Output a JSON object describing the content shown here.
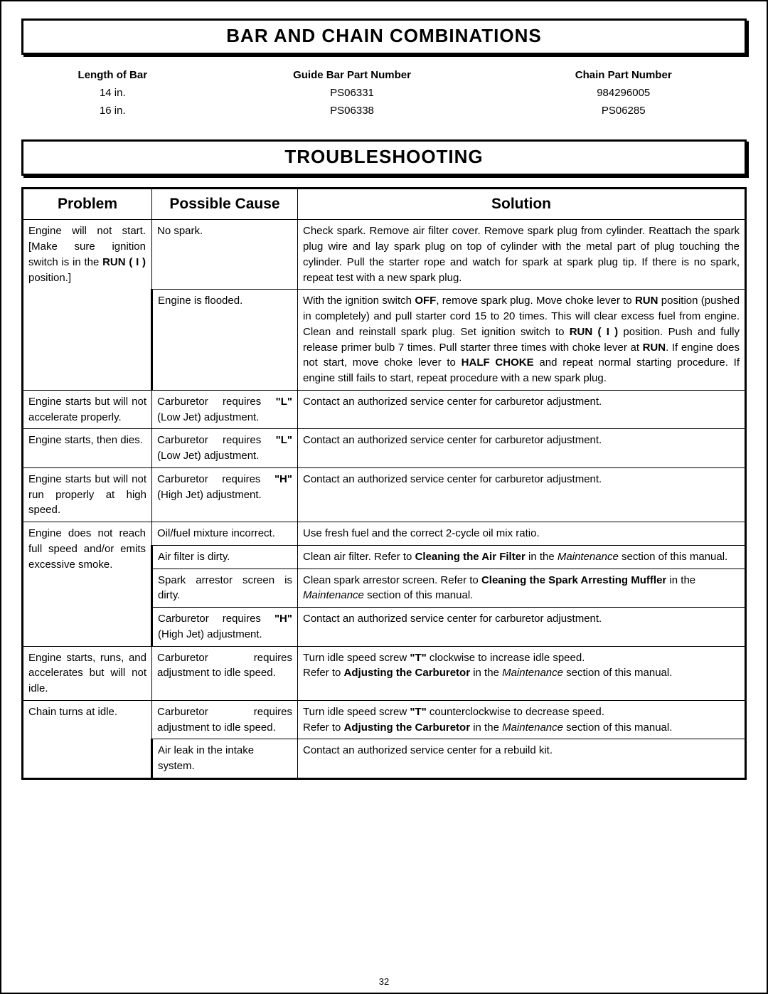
{
  "page_number": "32",
  "section1": {
    "title": "BAR AND CHAIN COMBINATIONS",
    "headers": [
      "Length of Bar",
      "Guide Bar Part Number",
      "Chain Part Number"
    ],
    "rows": [
      [
        "14 in.",
        "PS06331",
        "984296005"
      ],
      [
        "16 in.",
        "PS06338",
        "PS06285"
      ]
    ]
  },
  "section2": {
    "title": "TROUBLESHOOTING",
    "headers": [
      "Problem",
      "Possible Cause",
      "Solution"
    ],
    "rows": [
      {
        "problem_html": "Engine will not start. [Make sure ignition switch is in the <b>RUN ( I )</b> position.]",
        "cause_html": "No spark.",
        "solution_html": "Check spark. Remove air filter cover. Remove spark plug from cylinder. Reattach the spark plug wire and lay spark plug on top of cylinder with the metal part of plug touching the cylinder. Pull the starter rope and watch for spark at spark plug tip. If there is no spark, repeat test with a new spark plug."
      },
      {
        "problem_html": "",
        "cause_html": "Engine is flooded.",
        "solution_html": "With the ignition switch <b>OFF</b>, remove spark plug. Move choke lever to <b>RUN</b> position (pushed in completely) and pull starter cord 15 to 20 times. This will clear excess fuel from engine. Clean and reinstall spark plug. Set ignition switch to <b>RUN ( I )</b> position. Push and fully release primer bulb 7 times. Pull starter three times with choke lever at <b>RUN</b>. If engine does not start, move choke lever to <b>HALF CHOKE</b> and repeat normal starting procedure. If engine still fails to start, repeat procedure with a new spark plug."
      },
      {
        "problem_html": "Engine starts but will not accelerate prop­erly.",
        "cause_html": "Carburetor requires <b>\"L\"</b> (Low Jet) adjustment.",
        "solution_html": "Contact an authorized service center for carburetor adjustment."
      },
      {
        "problem_html": "Engine starts, then dies.",
        "cause_html": "Carburetor requires <b>\"L\"</b> (Low Jet) adjustment.",
        "solution_html": "Contact an authorized service center for carburetor adjustment."
      },
      {
        "problem_html": "Engine starts but will not run properly at high speed.",
        "cause_html": "Carburetor requires <b>\"H\"</b> (High Jet) adjustment.",
        "solution_html": "Contact an authorized service center for carburetor adjustment."
      },
      {
        "problem_html": "Engine does not reach full speed and/or emits excessive smoke.",
        "cause_html": "Oil/fuel mixture incorrect.",
        "solution_html": "Use fresh fuel and the correct 2-cycle oil mix ratio."
      },
      {
        "problem_html": "",
        "cause_html": "Air filter is dirty.",
        "solution_html": "Clean air filter. Refer to <b>Cleaning the Air Filter</b> in the <i>Maintenance</i> section of this manual."
      },
      {
        "problem_html": "",
        "cause_html": "Spark arrestor screen is dirty.",
        "solution_html": "Clean spark arrestor screen. Refer to <b>Cleaning the Spark Arresting Muffler</b> in the <i>Maintenance</i> section of this manual."
      },
      {
        "problem_html": "",
        "cause_html": "Carburetor requires <b>\"H\"</b> (High Jet) adjustment.",
        "solution_html": "Contact an authorized service center for carburetor adjustment."
      },
      {
        "problem_html": "Engine starts, runs, and accelerates but will not idle.",
        "cause_html": "Carburetor requires adjustment to idle speed.",
        "solution_html": "Turn idle speed screw <b>\"T\"</b> clockwise to increase idle speed.<br>Refer to <b>Adjusting the Carburetor</b> in the <i>Maintenance</i> section of this manual."
      },
      {
        "problem_html": "Chain turns at idle.",
        "cause_html": "Carburetor requires adjustment to idle speed.",
        "solution_html": "Turn idle speed screw <b>\"T\"</b> counterclockwise to decrease speed.<br>Refer to <b>Adjusting the Carburetor</b> in the <i>Maintenance</i> section of this manual."
      },
      {
        "problem_html": "",
        "cause_html": "Air leak in the intake system.",
        "solution_html": "Contact an authorized service center for a rebuild kit."
      }
    ]
  }
}
